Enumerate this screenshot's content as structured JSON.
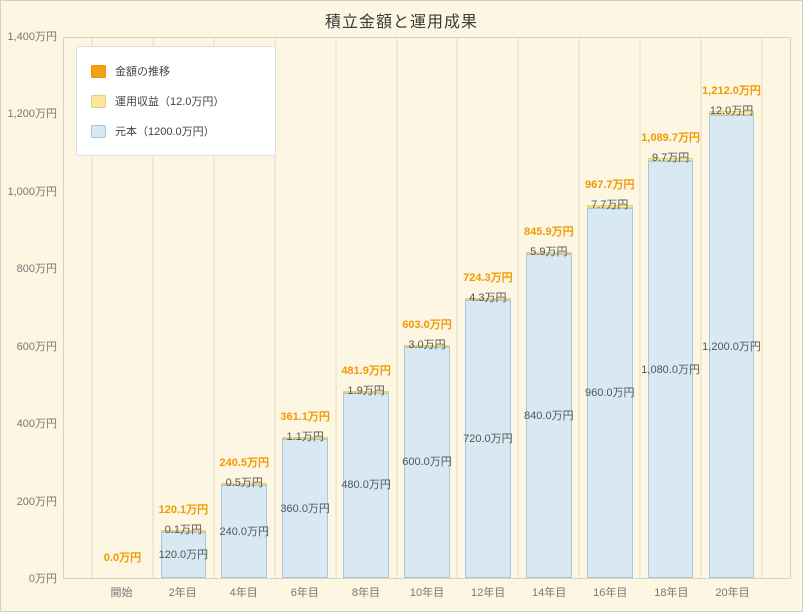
{
  "chart_data": {
    "type": "bar",
    "stacked": true,
    "title": "積立金額と運用成果",
    "categories": [
      "開始",
      "2年目",
      "4年目",
      "6年目",
      "8年目",
      "10年目",
      "12年目",
      "14年目",
      "16年目",
      "18年目",
      "20年目"
    ],
    "series": [
      {
        "name": "元本（1200.0万円）",
        "values": [
          0,
          120.0,
          240.0,
          360.0,
          480.0,
          600.0,
          720.0,
          840.0,
          960.0,
          1080.0,
          1200.0
        ],
        "color": "#d8e9f4",
        "border": "#a5c8de"
      },
      {
        "name": "運用収益（12.0万円）",
        "values": [
          0,
          0.1,
          0.5,
          1.1,
          1.9,
          3.0,
          4.3,
          5.9,
          7.7,
          9.7,
          12.0
        ],
        "color": "#f9e8a0",
        "border": "#e8d079"
      }
    ],
    "totals": [
      "0.0万円",
      "120.1万円",
      "240.5万円",
      "361.1万円",
      "481.9万円",
      "603.0万円",
      "724.3万円",
      "845.9万円",
      "967.7万円",
      "1,089.7万円",
      "1,212.0万円"
    ],
    "return_labels": [
      "",
      "0.1万円",
      "0.5万円",
      "1.1万円",
      "1.9万円",
      "3.0万円",
      "4.3万円",
      "5.9万円",
      "7.7万円",
      "9.7万円",
      "12.0万円"
    ],
    "principal_labels": [
      "",
      "120.0万円",
      "240.0万円",
      "360.0万円",
      "480.0万円",
      "600.0万円",
      "720.0万円",
      "840.0万円",
      "960.0万円",
      "1,080.0万円",
      "1,200.0万円"
    ],
    "legend": [
      {
        "label": "金額の推移",
        "fill": "#f4a119",
        "border": "#ef8f00"
      },
      {
        "label": "運用収益（12.0万円）",
        "fill": "#f9e8a0",
        "border": "#e8d079"
      },
      {
        "label": "元本（1200.0万円）",
        "fill": "#d8e9f4",
        "border": "#a5c8de"
      }
    ],
    "y_ticks": [
      "0万円",
      "200万円",
      "400万円",
      "600万円",
      "800万円",
      "1,000万円",
      "1,200万円",
      "1,400万円"
    ],
    "ylim": [
      0,
      1400
    ],
    "xlabel": "",
    "ylabel": "",
    "legend_position": "top-left",
    "grid": "vertical-only",
    "colors": {
      "background": "#fdf6e2",
      "total_label": "#f09a00",
      "axis_text": "#777777",
      "data_label_text": "#555555"
    }
  }
}
